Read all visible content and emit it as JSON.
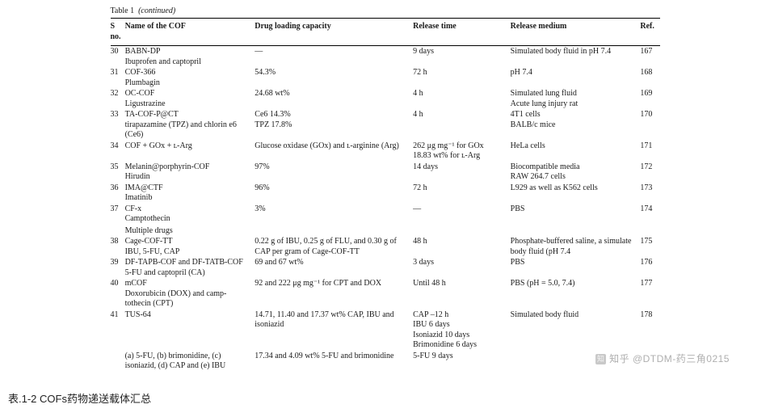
{
  "table_label": "Table 1",
  "continued": "(continued)",
  "columns": {
    "sno": "S\nno.",
    "name": "Name of the COF",
    "loading": "Drug loading capacity",
    "release": "Release time",
    "medium": "Release medium",
    "ref": "Ref."
  },
  "rows": [
    {
      "sno": "30",
      "name": "BABN-DP",
      "sub": "Ibuprofen and captopril",
      "loading": "—",
      "release": "9 days",
      "medium": "Simulated body fluid in pH 7.4",
      "ref": "167"
    },
    {
      "sno": "31",
      "name": "COF-366",
      "sub": "Plumbagin",
      "loading": "54.3%",
      "release": "72 h",
      "medium": "pH 7.4",
      "ref": "168"
    },
    {
      "sno": "32",
      "name": "OC-COF",
      "sub": "Ligustrazine",
      "loading": "24.68 wt%",
      "release": "4 h",
      "medium": "Simulated lung fluid\nAcute lung injury rat",
      "ref": "169"
    },
    {
      "sno": "33",
      "name": "TA-COF-P@CT",
      "sub": "tirapazamine (TPZ) and chlorin e6 (Ce6)",
      "loading": "Ce6 14.3%\nTPZ 17.8%",
      "release": "4 h",
      "medium": "4T1 cells\nBALB/c mice",
      "ref": "170"
    },
    {
      "sno": "34",
      "name": "COF + GOx + ʟ-Arg",
      "sub": "",
      "loading": "Glucose oxidase (GOx) and ʟ-arginine (Arg)",
      "release": "262 μg mg⁻¹ for GOx\n18.83 wt% for ʟ-Arg",
      "medium": "HeLa cells",
      "ref": "171"
    },
    {
      "sno": "35",
      "name": "Melanin@porphyrin-COF",
      "sub": "Hirudin",
      "loading": "97%",
      "release": "14 days",
      "medium": "Biocompatible media\nRAW 264.7 cells",
      "ref": "172"
    },
    {
      "sno": "36",
      "name": "IMA@CTF",
      "sub": "Imatinib",
      "loading": "96%",
      "release": "72 h",
      "medium": "L929 as well as K562 cells",
      "ref": "173"
    },
    {
      "sno": "37",
      "name": "CF-x",
      "sub": "Camptothecin",
      "loading": "3%",
      "release": "—",
      "medium": "PBS",
      "ref": "174"
    }
  ],
  "section_label": "Multiple drugs",
  "rows2": [
    {
      "sno": "38",
      "name": "Cage-COF-TT",
      "sub": "IBU, 5-FU, CAP",
      "loading": "0.22 g of IBU, 0.25 g of FLU, and 0.30 g of CAP per gram of Cage-COF-TT",
      "release": "48 h",
      "medium": "Phosphate-buffered saline, a simulate body fluid (pH 7.4",
      "ref": "175"
    },
    {
      "sno": "39",
      "name": "DF-TAPB-COF and DF-TATB-COF",
      "sub": "5-FU and captopril (CA)",
      "loading": "69 and 67 wt%",
      "release": "3 days",
      "medium": "PBS",
      "ref": "176"
    },
    {
      "sno": "40",
      "name": "mCOF",
      "sub": "Doxorubicin (DOX) and camp-tothecin (CPT)",
      "loading": "92 and 222 μg mg⁻¹ for CPT and DOX",
      "release": "Until 48 h",
      "medium": "PBS (pH = 5.0, 7.4)",
      "ref": "177"
    },
    {
      "sno": "41",
      "name": "TUS-64",
      "sub": "",
      "loading": "14.71, 11.40 and 17.37 wt% CAP, IBU and isoniazid",
      "release": "CAP –12 h\nIBU 6 days\nIsoniazid 10 days\nBrimonidine 6 days",
      "medium": "Simulated body fluid",
      "ref": "178"
    },
    {
      "sno": "",
      "name": "(a) 5-FU, (b) brimonidine, (c) isoniazid, (d) CAP and (e) IBU",
      "sub": "",
      "loading": "17.34 and 4.09 wt% 5-FU and brimonidine",
      "release": "5-FU 9 days",
      "medium": "",
      "ref": ""
    }
  ],
  "caption": "表.1-2 COFs药物递送载体汇总",
  "watermark": "@DTDM-药三角0215",
  "zhihu_label": "知乎",
  "colors": {
    "text": "#1a1a1a",
    "border": "#000000",
    "watermark": "rgba(120,120,120,0.6)",
    "background": "#ffffff"
  }
}
